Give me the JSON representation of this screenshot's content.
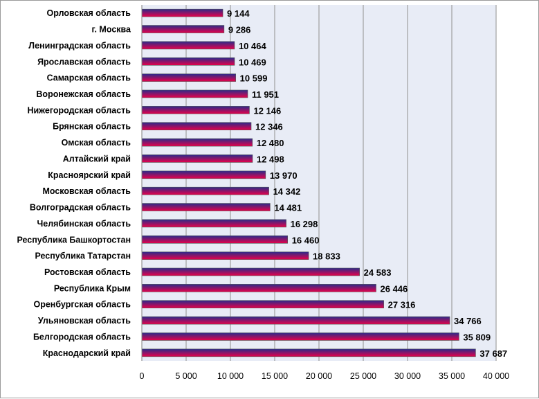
{
  "chart_data": {
    "type": "bar",
    "orientation": "horizontal",
    "title": "",
    "xlabel": "",
    "ylabel": "",
    "xlim": [
      0,
      40000
    ],
    "grid": true,
    "legend": "none",
    "colors": {
      "plot_background": "#e8ecf6",
      "gridline": "#8f8f8f",
      "bar_top": "#2b2b8a",
      "bar_bottom": "#e8004a",
      "axis": "#7f7f7f"
    },
    "tick_values": [
      0,
      5000,
      10000,
      15000,
      20000,
      25000,
      30000,
      35000,
      40000
    ],
    "tick_labels": [
      "0",
      "5 000",
      "10 000",
      "15 000",
      "20 000",
      "25 000",
      "30 000",
      "35 000",
      "40 000"
    ],
    "categories": [
      "Орловская область",
      "г. Москва",
      "Ленинградская область",
      "Ярославская область",
      "Самарская область",
      "Воронежская область",
      "Нижегородская область",
      "Брянская область",
      "Омская область",
      "Алтайский край",
      "Красноярский край",
      "Московская область",
      "Волгоградская область",
      "Челябинская область",
      "Республика Башкортостан",
      "Республика Татарстан",
      "Ростовская область",
      "Республика Крым",
      "Оренбургская область",
      "Ульяновская область",
      "Белгородская область",
      "Краснодарский край"
    ],
    "values": [
      9144,
      9286,
      10464,
      10469,
      10599,
      11951,
      12146,
      12346,
      12480,
      12498,
      13970,
      14342,
      14481,
      16298,
      16460,
      18833,
      24583,
      26446,
      27316,
      34766,
      35809,
      37687
    ],
    "value_labels": [
      "9 144",
      "9 286",
      "10 464",
      "10 469",
      "10 599",
      "11 951",
      "12 146",
      "12 346",
      "12 480",
      "12 498",
      "13 970",
      "14 342",
      "14 481",
      "16 298",
      "16 460",
      "18 833",
      "24 583",
      "26 446",
      "27 316",
      "34 766",
      "35 809",
      "37 687"
    ]
  }
}
